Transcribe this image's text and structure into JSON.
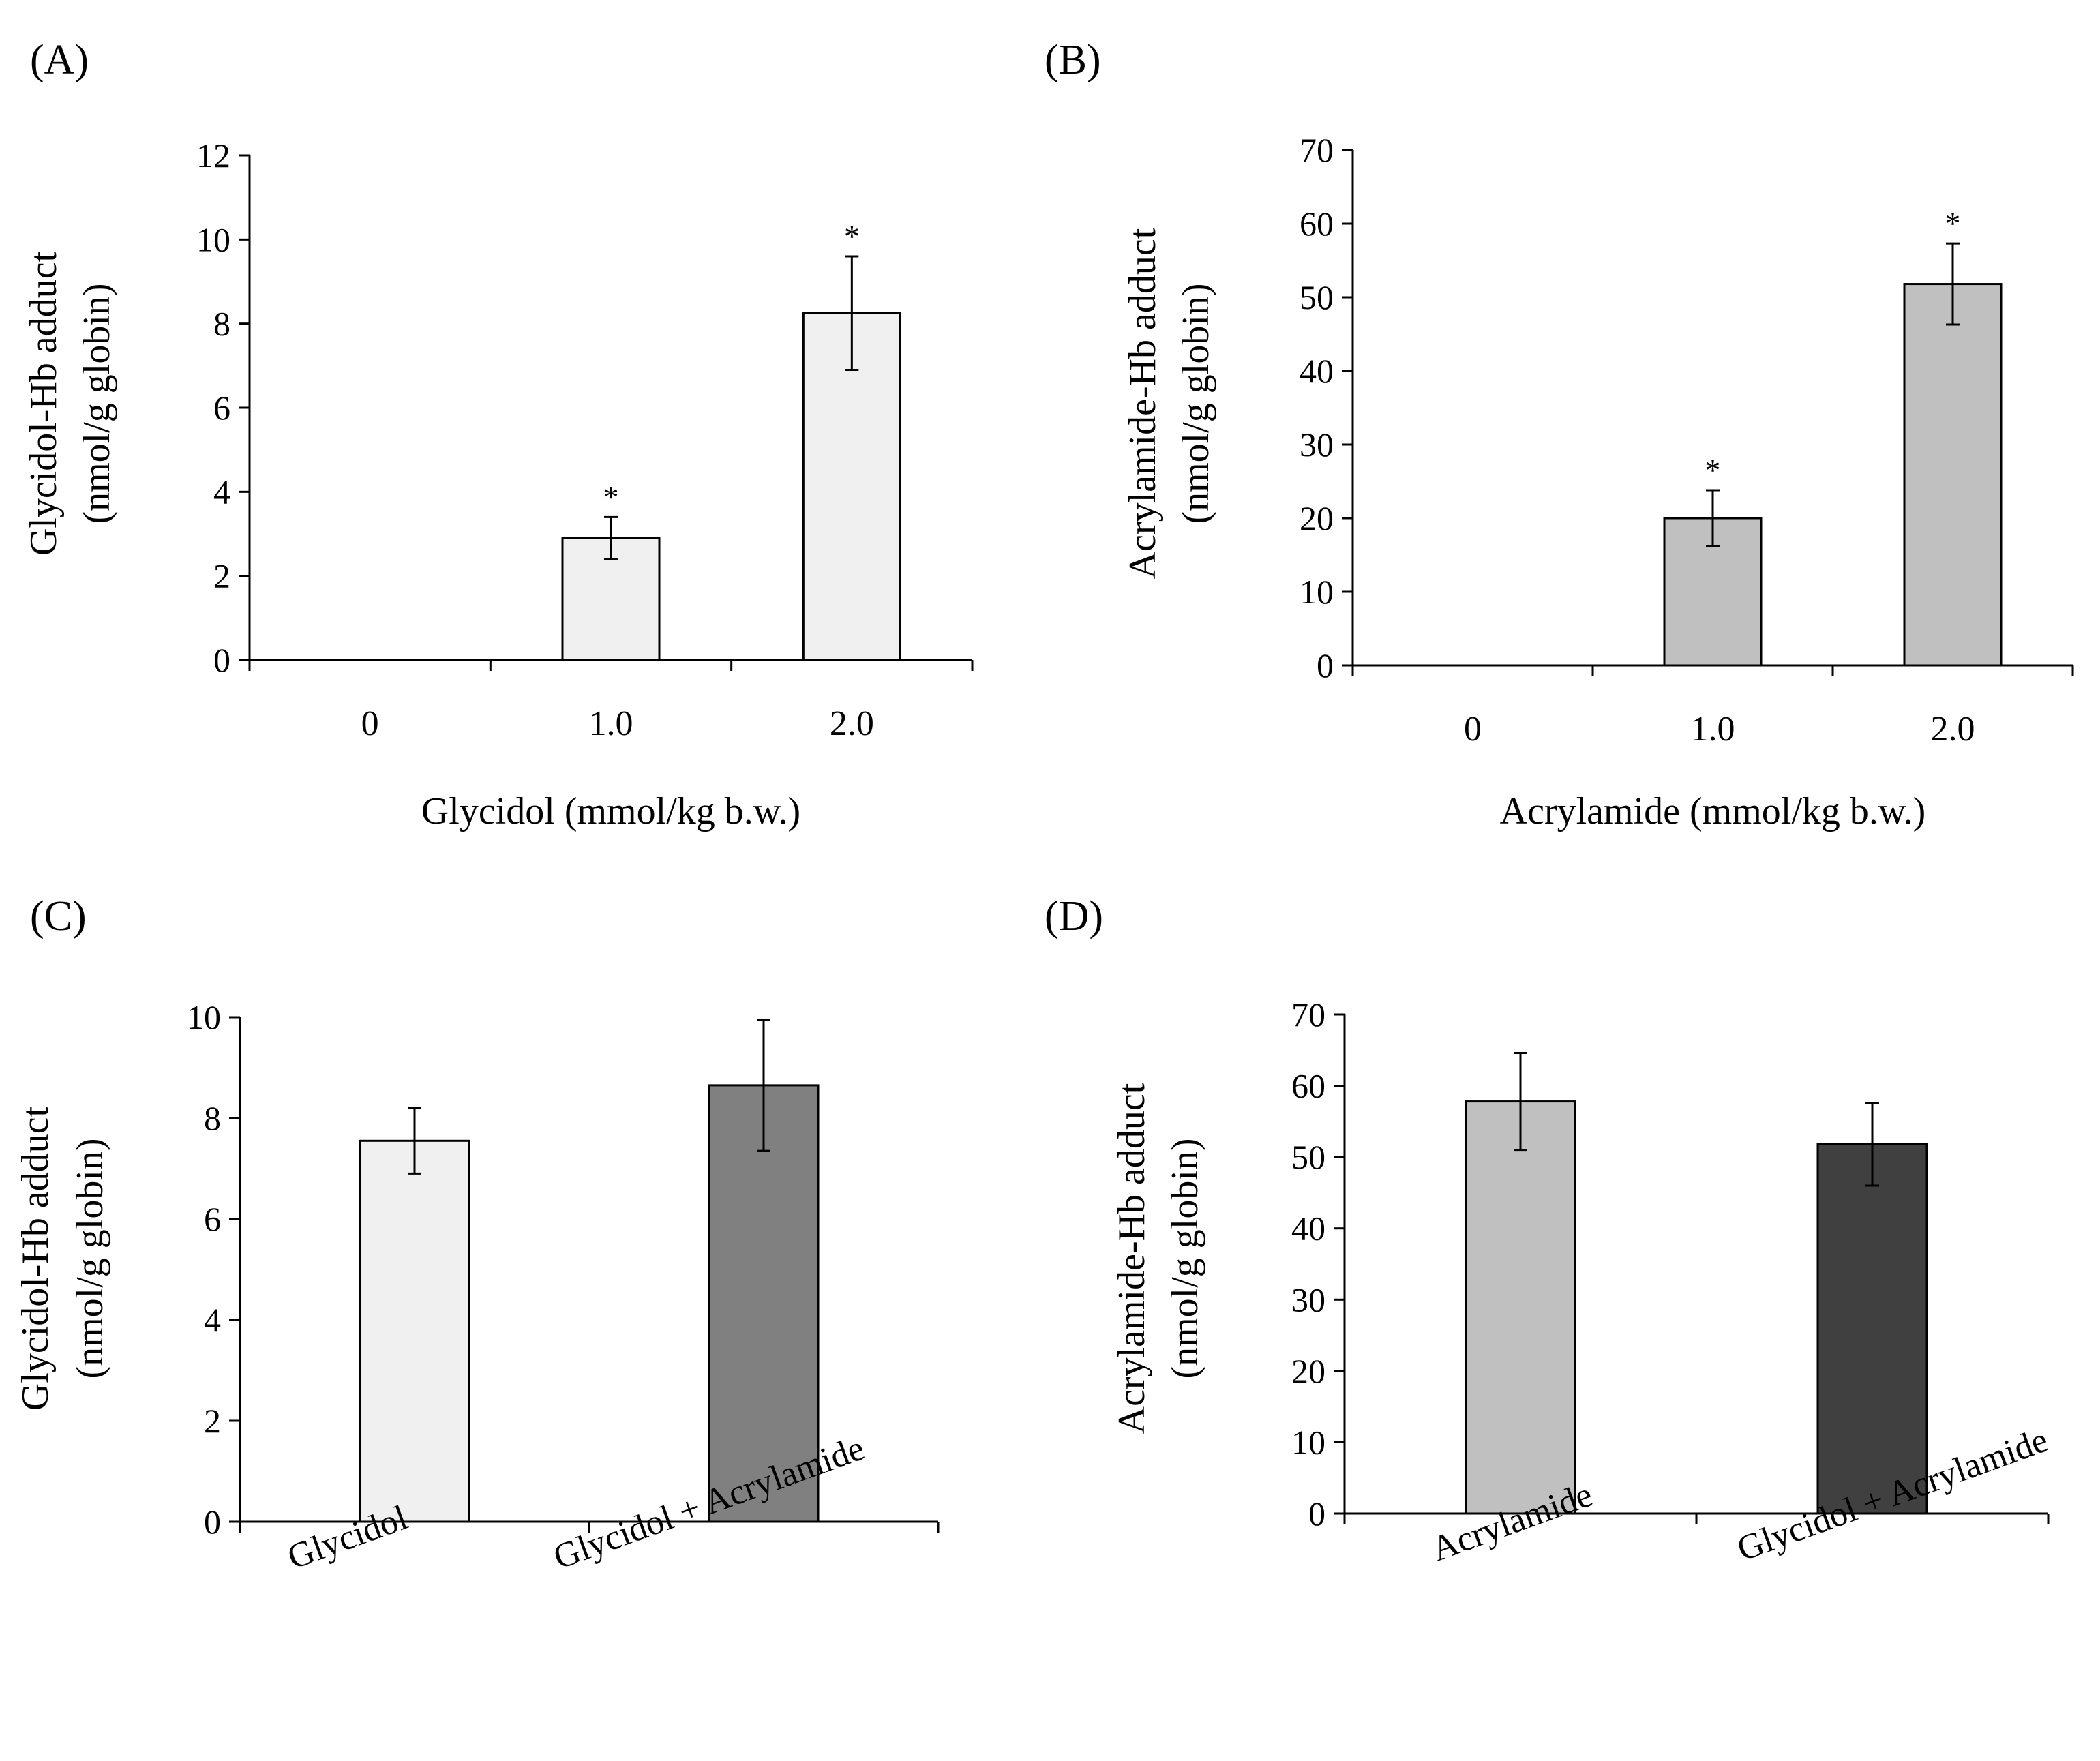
{
  "figure": {
    "panels": [
      "A",
      "B",
      "C",
      "D"
    ]
  },
  "chart_data": [
    {
      "panel_label": "(A)",
      "type": "bar",
      "categories": [
        "0",
        "1.0",
        "2.0"
      ],
      "values": [
        0,
        2.9,
        8.25
      ],
      "errors": [
        0,
        0.5,
        1.35
      ],
      "significant": [
        false,
        true,
        true
      ],
      "significance_marker": "*",
      "bar_color": "#f0f0f0",
      "xlabel": "Glycidol (mmol/kg b.w.)",
      "ylabel_line1": "Glycidol-Hb adduct",
      "ylabel_line2": "(nmol/g globin)",
      "ylim": [
        0,
        12
      ],
      "yticks": [
        "0",
        "2",
        "4",
        "6",
        "8",
        "10",
        "12"
      ],
      "rotated_categories": false
    },
    {
      "panel_label": "(B)",
      "type": "bar",
      "categories": [
        "0",
        "1.0",
        "2.0"
      ],
      "values": [
        0,
        20,
        51.8
      ],
      "errors": [
        0,
        3.8,
        5.5
      ],
      "significant": [
        false,
        true,
        true
      ],
      "significance_marker": "*",
      "bar_color": "#c0c0c0",
      "xlabel": "Acrylamide (mmol/kg b.w.)",
      "ylabel_line1": "Acrylamide-Hb adduct",
      "ylabel_line2": "(nmol/g globin)",
      "ylim": [
        0,
        70
      ],
      "yticks": [
        "0",
        "10",
        "20",
        "30",
        "40",
        "50",
        "60",
        "70"
      ],
      "rotated_categories": false
    },
    {
      "panel_label": "(C)",
      "type": "bar",
      "categories": [
        "Glycidol",
        "Glycidol + Acrylamide"
      ],
      "values": [
        7.55,
        8.65
      ],
      "errors": [
        0.65,
        1.3
      ],
      "significant": [
        false,
        false
      ],
      "significance_marker": "*",
      "bar_colors": [
        "#f0f0f0",
        "#808080"
      ],
      "xlabel": "",
      "ylabel_line1": "Glycidol-Hb adduct",
      "ylabel_line2": "(nmol/g globin)",
      "ylim": [
        0,
        10
      ],
      "yticks": [
        "0",
        "2",
        "4",
        "6",
        "8",
        "10"
      ],
      "rotated_categories": true
    },
    {
      "panel_label": "(D)",
      "type": "bar",
      "categories": [
        "Acrylamide",
        "Glycidol + Acrylamide"
      ],
      "values": [
        57.8,
        51.8
      ],
      "errors": [
        6.8,
        5.8
      ],
      "significant": [
        false,
        false
      ],
      "significance_marker": "*",
      "bar_colors": [
        "#c0c0c0",
        "#404040"
      ],
      "xlabel": "",
      "ylabel_line1": "Acrylamide-Hb adduct",
      "ylabel_line2": "(nmol/g globin)",
      "ylim": [
        0,
        70
      ],
      "yticks": [
        "0",
        "10",
        "20",
        "30",
        "40",
        "50",
        "60",
        "70"
      ],
      "rotated_categories": true
    }
  ]
}
